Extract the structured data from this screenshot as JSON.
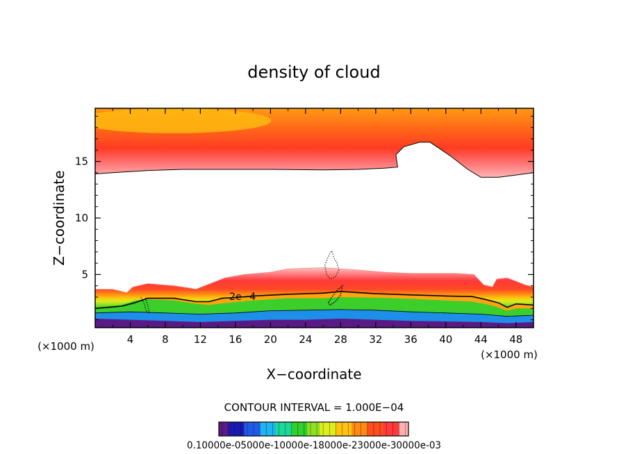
{
  "chart_data": {
    "type": "heatmap",
    "title": "density of cloud",
    "xlabel": "X−coordinate",
    "ylabel": "Z−coordinate",
    "x_unit_left": "(×1000 m)",
    "x_unit_right": "(×1000 m)",
    "xlim": [
      0,
      50
    ],
    "ylim": [
      0.3,
      19.7
    ],
    "xticks": [
      4,
      8,
      12,
      16,
      20,
      24,
      28,
      32,
      36,
      40,
      44,
      48
    ],
    "yticks": [
      5,
      10,
      15
    ],
    "contour_interval_text": "CONTOUR INTERVAL = 1.000E−04",
    "contour_label": "2e−4",
    "contour_label_pos": {
      "x": 15.3,
      "z": 2.75
    },
    "colorbar_labels_text": "0.10000e-05000e-10000e-18000e-23000e-30000e-03",
    "colorbar_colors": [
      "#5a1a86",
      "#1a1ab0",
      "#1f5ae8",
      "#1fb4ef",
      "#1cd79a",
      "#31d02a",
      "#8fe022",
      "#ddee1f",
      "#ffc20e",
      "#ff8a12",
      "#ff4d1e",
      "#ff3a3a",
      "#ffb0b0"
    ],
    "colorbar_gap_colors": [
      "#3b6fe8",
      "#6acff2",
      "#9ef0c0",
      "#d8f7a0",
      "#f7f3b0",
      "#fff0c0"
    ],
    "upper_layer": {
      "top": 19.7,
      "color_bottom": "#ffb4b4",
      "color_mid": "#ff3b24",
      "color_top": "#ff9a14",
      "bottom_boundary": [
        [
          0,
          13.9
        ],
        [
          2,
          14.0
        ],
        [
          6,
          14.2
        ],
        [
          10,
          14.3
        ],
        [
          14,
          14.3
        ],
        [
          20,
          14.3
        ],
        [
          26,
          14.25
        ],
        [
          30,
          14.3
        ],
        [
          33,
          14.4
        ],
        [
          34.5,
          14.5
        ],
        [
          34.3,
          15.6
        ],
        [
          35.2,
          16.3
        ],
        [
          37.0,
          16.7
        ],
        [
          38.2,
          16.7
        ],
        [
          40.5,
          15.5
        ],
        [
          42.5,
          14.3
        ],
        [
          44,
          13.6
        ],
        [
          46,
          13.6
        ],
        [
          48,
          13.8
        ],
        [
          50,
          14.0
        ]
      ]
    },
    "lower_layer": {
      "outer_top": [
        [
          0,
          3.7
        ],
        [
          2,
          3.7
        ],
        [
          3.6,
          3.4
        ],
        [
          4.3,
          3.9
        ],
        [
          6,
          4.2
        ],
        [
          9,
          4.0
        ],
        [
          10.8,
          3.8
        ],
        [
          11.5,
          3.7
        ],
        [
          12.8,
          4.1
        ],
        [
          13.8,
          4.4
        ],
        [
          14.8,
          4.7
        ],
        [
          17,
          5.0
        ],
        [
          20,
          5.2
        ],
        [
          22,
          5.5
        ],
        [
          26,
          5.6
        ],
        [
          28,
          5.5
        ],
        [
          30,
          5.4
        ],
        [
          33,
          5.2
        ],
        [
          36,
          5.1
        ],
        [
          38.5,
          5.1
        ],
        [
          41,
          5.1
        ],
        [
          43.2,
          5.0
        ],
        [
          44.3,
          4.1
        ],
        [
          45.3,
          3.9
        ],
        [
          45.8,
          4.6
        ],
        [
          47,
          4.7
        ],
        [
          49,
          4.1
        ],
        [
          50,
          3.9
        ]
      ],
      "c2e4_line": [
        [
          0,
          2.0
        ],
        [
          3,
          2.2
        ],
        [
          4.5,
          2.5
        ],
        [
          6,
          2.9
        ],
        [
          9,
          2.9
        ],
        [
          11.5,
          2.6
        ],
        [
          13,
          2.6
        ],
        [
          14.5,
          2.9
        ],
        [
          15.8,
          2.95
        ],
        [
          18,
          3.1
        ],
        [
          22,
          3.25
        ],
        [
          26,
          3.35
        ],
        [
          28,
          3.5
        ],
        [
          32,
          3.3
        ],
        [
          36,
          3.2
        ],
        [
          40,
          3.1
        ],
        [
          43,
          3.05
        ],
        [
          44.5,
          2.8
        ],
        [
          46,
          2.5
        ],
        [
          47,
          2.1
        ],
        [
          48,
          2.4
        ],
        [
          50,
          2.3
        ]
      ],
      "green_top": [
        [
          0,
          2.1
        ],
        [
          3,
          2.3
        ],
        [
          4.5,
          2.7
        ],
        [
          6,
          2.8
        ],
        [
          9,
          2.7
        ],
        [
          11.5,
          2.4
        ],
        [
          13,
          2.3
        ],
        [
          15,
          2.5
        ],
        [
          18,
          2.7
        ],
        [
          22,
          2.9
        ],
        [
          26,
          2.9
        ],
        [
          28,
          3.0
        ],
        [
          32,
          2.95
        ],
        [
          36,
          2.85
        ],
        [
          40,
          2.7
        ],
        [
          43,
          2.6
        ],
        [
          44.5,
          2.4
        ],
        [
          46,
          2.1
        ],
        [
          47,
          1.8
        ],
        [
          48,
          2.0
        ],
        [
          50,
          2.0
        ]
      ],
      "blue_top": [
        [
          0,
          1.6
        ],
        [
          4,
          1.7
        ],
        [
          8,
          1.6
        ],
        [
          12,
          1.5
        ],
        [
          16,
          1.6
        ],
        [
          20,
          1.8
        ],
        [
          24,
          1.85
        ],
        [
          28,
          1.9
        ],
        [
          32,
          1.85
        ],
        [
          36,
          1.7
        ],
        [
          40,
          1.6
        ],
        [
          44,
          1.5
        ],
        [
          47,
          1.3
        ],
        [
          50,
          1.4
        ]
      ],
      "purple_top": [
        [
          0,
          1.1
        ],
        [
          4,
          1.0
        ],
        [
          8,
          0.9
        ],
        [
          12,
          0.8
        ],
        [
          16,
          0.9
        ],
        [
          20,
          1.0
        ],
        [
          24,
          1.0
        ],
        [
          28,
          1.1
        ],
        [
          32,
          1.0
        ],
        [
          36,
          0.9
        ],
        [
          40,
          0.85
        ],
        [
          44,
          0.8
        ],
        [
          47,
          0.7
        ],
        [
          50,
          0.8
        ]
      ],
      "stops": [
        {
          "offset": 0.0,
          "color": "#5a1a86"
        },
        {
          "offset": 0.07,
          "color": "#2a2ab8"
        },
        {
          "offset": 0.14,
          "color": "#2060e8"
        },
        {
          "offset": 0.2,
          "color": "#1fb4ef"
        },
        {
          "offset": 0.26,
          "color": "#1cd79a"
        },
        {
          "offset": 0.32,
          "color": "#30d02a"
        },
        {
          "offset": 0.38,
          "color": "#8ae022"
        },
        {
          "offset": 0.44,
          "color": "#dceb1f"
        },
        {
          "offset": 0.5,
          "color": "#ffc20e"
        },
        {
          "offset": 0.56,
          "color": "#ff8a14"
        },
        {
          "offset": 0.64,
          "color": "#ff4a24"
        },
        {
          "offset": 0.78,
          "color": "#ff3838"
        },
        {
          "offset": 0.9,
          "color": "#ff8080"
        },
        {
          "offset": 1.0,
          "color": "#ffc4c4"
        }
      ]
    }
  }
}
